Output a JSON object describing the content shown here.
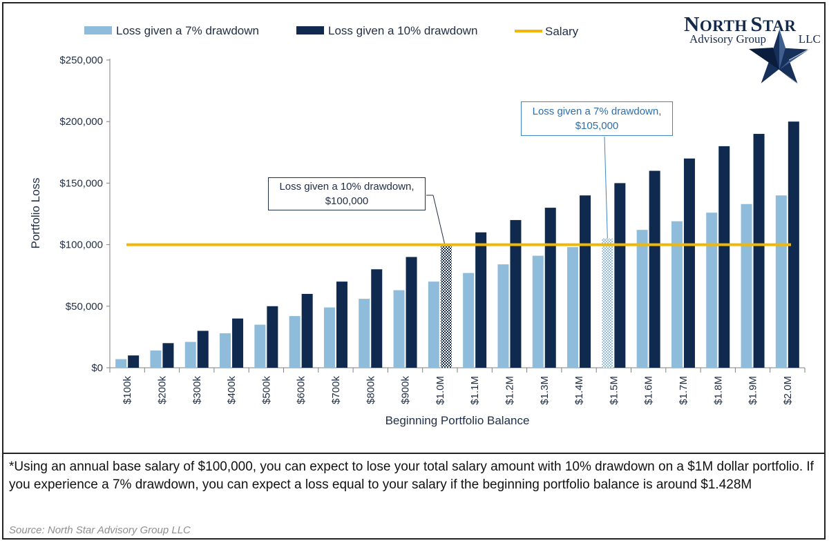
{
  "colors": {
    "light_series": "#8fbcdb",
    "dark_series": "#0f2a4e",
    "salary_line": "#f2b705",
    "axis_text": "#1f2d45",
    "callout_10_border": "#1f2d45",
    "callout_7_border": "#3f86c2",
    "callout_7_text": "#2e6eaa"
  },
  "logo": {
    "word1_initial": "N",
    "word1_rest": "ORTH",
    "word2_initial": "S",
    "word2_rest": "TAR",
    "subtitle": "Advisory Group",
    "suffix": "LLC"
  },
  "chart_data": {
    "type": "bar",
    "title": "",
    "xlabel": "Beginning Portfolio Balance",
    "ylabel": "Portfolio Loss",
    "ylim": [
      0,
      250000
    ],
    "y_ticks": [
      0,
      50000,
      100000,
      150000,
      200000,
      250000
    ],
    "y_tick_labels": [
      "$0",
      "$50,000",
      "$100,000",
      "$150,000",
      "$200,000",
      "$250,000"
    ],
    "categories": [
      "$100k",
      "$200k",
      "$300k",
      "$400k",
      "$500k",
      "$600k",
      "$700k",
      "$800k",
      "$900k",
      "$1.0M",
      "$1.1M",
      "$1.2M",
      "$1.3M",
      "$1.4M",
      "$1.5M",
      "$1.6M",
      "$1.7M",
      "$1.8M",
      "$1.9M",
      "$2.0M"
    ],
    "series": [
      {
        "name": "Loss given a 7% drawdown",
        "values": [
          7000,
          14000,
          21000,
          28000,
          35000,
          42000,
          49000,
          56000,
          63000,
          70000,
          77000,
          84000,
          91000,
          98000,
          105000,
          112000,
          119000,
          126000,
          133000,
          140000
        ],
        "highlight_index": 14
      },
      {
        "name": "Loss given a 10% drawdown",
        "values": [
          10000,
          20000,
          30000,
          40000,
          50000,
          60000,
          70000,
          80000,
          90000,
          100000,
          110000,
          120000,
          130000,
          140000,
          150000,
          160000,
          170000,
          180000,
          190000,
          200000
        ],
        "highlight_index": 9
      }
    ],
    "reference_line": {
      "name": "Salary",
      "value": 100000
    },
    "legend_position": "top",
    "grid": false,
    "annotations": [
      {
        "line1": "Loss given a 10% drawdown,",
        "line2": "$100,000",
        "series": 1,
        "category_index": 9
      },
      {
        "line1": "Loss given a 7% drawdown,",
        "line2": "$105,000",
        "series": 0,
        "category_index": 14
      }
    ]
  },
  "footnote": "*Using an annual base salary of $100,000, you can expect to lose your total salary amount with 10% drawdown on a $1M dollar portfolio.  If you experience a 7% drawdown, you can expect a loss equal to your salary if the beginning portfolio balance is around $1.428M",
  "source": "Source: North Star Advisory Group LLC"
}
